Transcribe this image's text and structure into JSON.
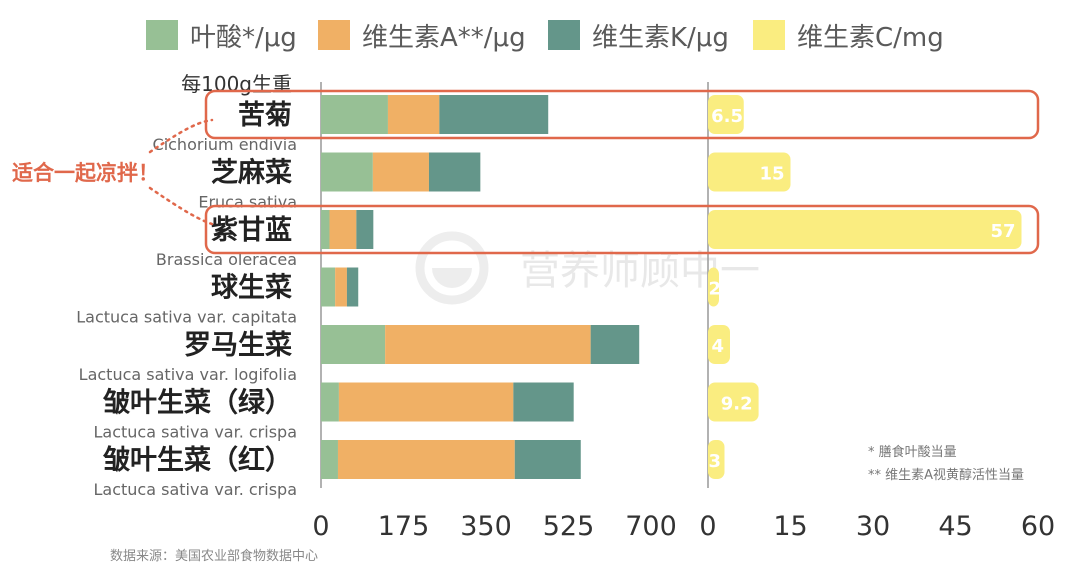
{
  "chart_data": {
    "type": "bar",
    "orientation": "horizontal",
    "stacked": true,
    "unit_label": "每100g生重",
    "categories": [
      {
        "name": "苦菊",
        "latin": "Cichorium endivia"
      },
      {
        "name": "芝麻菜",
        "latin": "Eruca sativa"
      },
      {
        "name": "紫甘蓝",
        "latin": "Brassica oleracea"
      },
      {
        "name": "球生菜",
        "latin": "Lactuca sativa var. capitata"
      },
      {
        "name": "罗马生菜",
        "latin": "Lactuca sativa var. logifolia"
      },
      {
        "name": "皱叶生菜（绿）",
        "latin": "Lactuca sativa var. crispa"
      },
      {
        "name": "皱叶生菜（红）",
        "latin": "Lactuca sativa var. crispa"
      }
    ],
    "left_panel": {
      "xlim": [
        0,
        700
      ],
      "ticks": [
        "0",
        "175",
        "350",
        "525",
        "700"
      ],
      "series": [
        {
          "name": "叶酸*/μg",
          "color": "#97c095",
          "values": [
            142,
            110,
            18,
            30,
            136,
            38,
            36
          ]
        },
        {
          "name": "维生素A**/μg",
          "color": "#f0b065",
          "values": [
            109,
            119,
            57,
            25,
            436,
            370,
            375
          ]
        },
        {
          "name": "维生素K/μg",
          "color": "#64968a",
          "values": [
            231,
            109,
            36,
            24,
            103,
            128,
            140
          ]
        }
      ]
    },
    "right_panel": {
      "xlim": [
        0,
        60
      ],
      "ticks": [
        "0",
        "15",
        "30",
        "45",
        "60"
      ],
      "series": [
        {
          "name": "维生素C/mg",
          "color": "#faed80",
          "values": [
            6.5,
            15,
            57,
            2,
            4,
            9.2,
            3
          ]
        }
      ],
      "value_labels": [
        "6.5",
        "15",
        "57",
        "2",
        "4",
        "9.2",
        "3"
      ]
    },
    "annotation": "适合一起凉拌！",
    "notes": [
      "* 膳食叶酸当量",
      "** 维生素A视黄醇活性当量"
    ]
  },
  "source": "数据来源：美国农业部食物数据中心",
  "watermark": "营养师顾中一",
  "highlight_color": "#e0684b"
}
